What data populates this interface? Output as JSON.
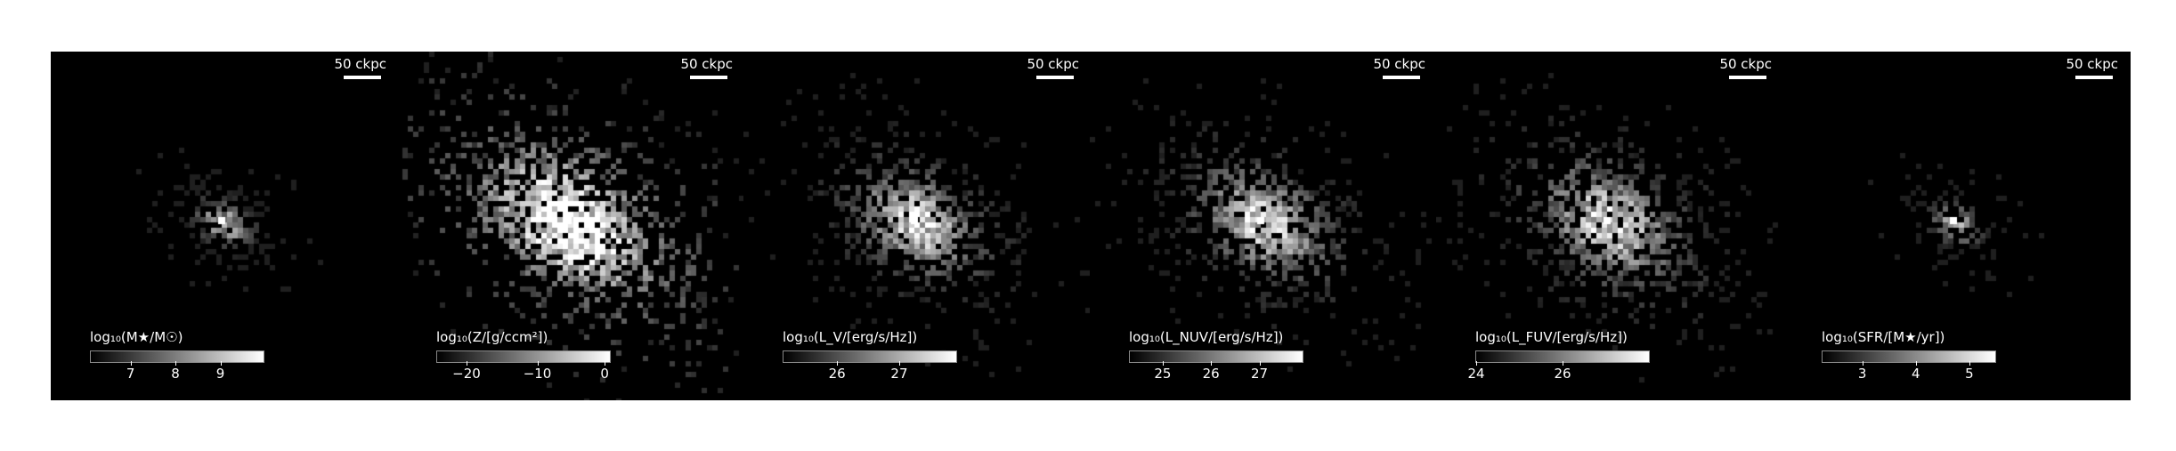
{
  "panels": [
    {
      "id": "stellar-mass",
      "scale_label": "50 ckpc",
      "colorbar_label": "log₁₀(M★/M☉)",
      "ticks": [
        {
          "v": "7",
          "f": 0.23
        },
        {
          "v": "8",
          "f": 0.49
        },
        {
          "v": "9",
          "f": 0.75
        }
      ],
      "map": {
        "spread": 0.55,
        "base": 0.12,
        "core": 0.95,
        "density": 0.55,
        "elong": 1.4
      }
    },
    {
      "id": "metallicity",
      "scale_label": "50 ckpc",
      "colorbar_label": "log₁₀(Z/[g/ccm²])",
      "ticks": [
        {
          "v": "−20",
          "f": 0.17
        },
        {
          "v": "−10",
          "f": 0.58
        },
        {
          "v": "0",
          "f": 0.97
        }
      ],
      "map": {
        "spread": 1.15,
        "base": 0.72,
        "core": 0.95,
        "density": 0.7,
        "elong": 1.7
      }
    },
    {
      "id": "v-band-luminosity",
      "scale_label": "50 ckpc",
      "colorbar_label": "log₁₀(L_V/[erg/s/Hz])",
      "ticks": [
        {
          "v": "26",
          "f": 0.31
        },
        {
          "v": "27",
          "f": 0.67
        }
      ],
      "map": {
        "spread": 0.95,
        "base": 0.38,
        "core": 0.92,
        "density": 0.62,
        "elong": 1.5
      }
    },
    {
      "id": "nuv-luminosity",
      "scale_label": "50 ckpc",
      "colorbar_label": "log₁₀(L_NUV/[erg/s/Hz])",
      "ticks": [
        {
          "v": "25",
          "f": 0.19
        },
        {
          "v": "26",
          "f": 0.47
        },
        {
          "v": "27",
          "f": 0.75
        }
      ],
      "map": {
        "spread": 0.95,
        "base": 0.42,
        "core": 0.88,
        "density": 0.64,
        "elong": 1.5
      }
    },
    {
      "id": "fuv-luminosity",
      "scale_label": "50 ckpc",
      "colorbar_label": "log₁₀(L_FUV/[erg/s/Hz])",
      "ticks": [
        {
          "v": "24",
          "f": 0.0
        },
        {
          "v": "26",
          "f": 0.5
        }
      ],
      "map": {
        "spread": 1.0,
        "base": 0.44,
        "core": 0.88,
        "density": 0.66,
        "elong": 1.5
      }
    },
    {
      "id": "star-formation-rate",
      "scale_label": "50 ckpc",
      "colorbar_label": "log₁₀(SFR/[M★/yr])",
      "ticks": [
        {
          "v": "3",
          "f": 0.23
        },
        {
          "v": "4",
          "f": 0.54
        },
        {
          "v": "5",
          "f": 0.85
        }
      ],
      "map": {
        "spread": 0.5,
        "base": 0.12,
        "core": 0.9,
        "density": 0.35,
        "elong": 1.4
      }
    }
  ]
}
